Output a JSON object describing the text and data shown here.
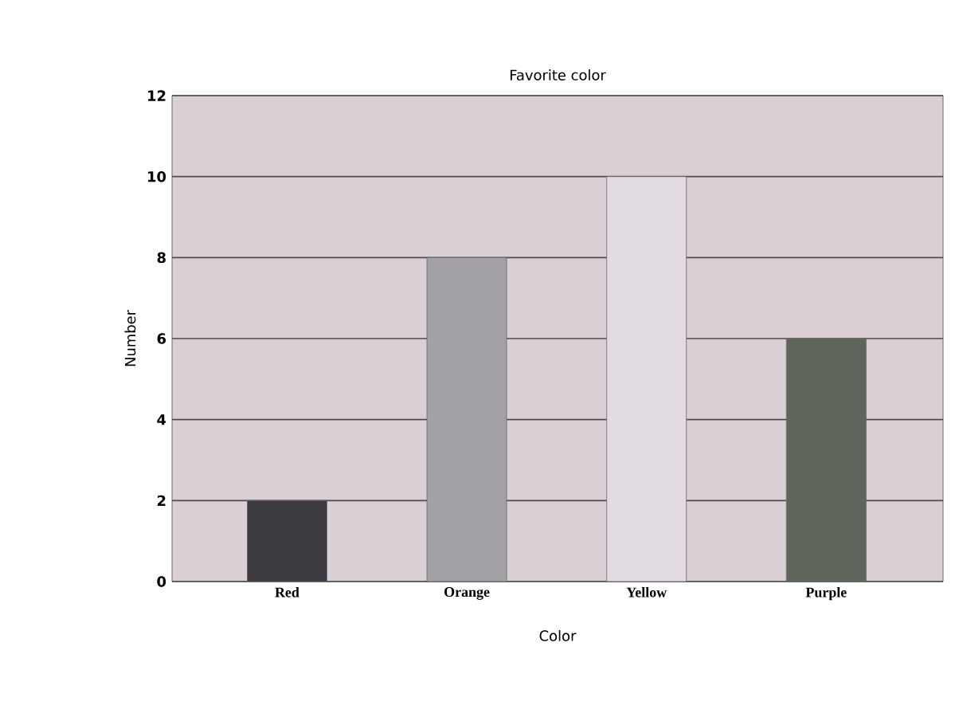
{
  "chart_data": {
    "type": "bar",
    "title": "Favorite color",
    "xlabel": "Color",
    "ylabel": "Number",
    "categories": [
      "Red",
      "Orange",
      "Yellow",
      "Purple"
    ],
    "values": [
      2,
      8,
      10,
      6
    ],
    "colors": [
      "#3c3a40",
      "#a3a0a6",
      "#e2dce2",
      "#5e665c"
    ],
    "ylim": [
      0,
      12
    ],
    "yticks": [
      0,
      2,
      4,
      6,
      8,
      10,
      12
    ],
    "grid": "y"
  }
}
